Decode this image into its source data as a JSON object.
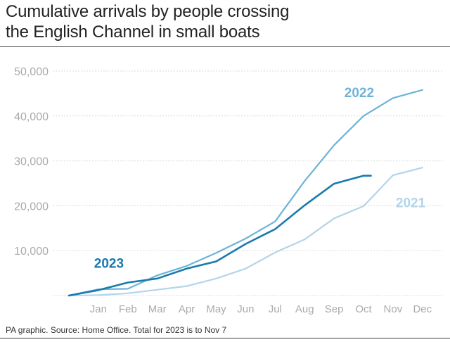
{
  "header": {
    "title_line1": "Cumulative arrivals by people crossing",
    "title_line2": "the English Channel in small boats"
  },
  "footer": {
    "source": "PA graphic. Source: Home Office. Total for 2023 is to Nov 7"
  },
  "colors": {
    "s2021": "#b3d5ea",
    "s2022": "#6db3d9",
    "s2023": "#1a7aad",
    "grid": "#d9d9d9",
    "tick": "#aaaaaa"
  },
  "chart_data": {
    "type": "line",
    "title": "Cumulative arrivals by people crossing the English Channel in small boats",
    "xlabel": "",
    "ylabel": "",
    "categories": [
      "Jan",
      "Feb",
      "Mar",
      "Apr",
      "May",
      "Jun",
      "Jul",
      "Aug",
      "Sep",
      "Oct",
      "Nov",
      "Dec"
    ],
    "y_ticks": [
      10000,
      20000,
      30000,
      40000,
      50000
    ],
    "y_tick_labels": [
      "10,000",
      "20,000",
      "30,000",
      "40,000",
      "50,000"
    ],
    "ylim": [
      0,
      50000
    ],
    "grid": true,
    "series": [
      {
        "name": "2021",
        "x": [
          0,
          1,
          2,
          3,
          4,
          5,
          6,
          7,
          8,
          9,
          10,
          11,
          12
        ],
        "values": [
          0,
          100,
          500,
          1300,
          2100,
          3800,
          6000,
          9600,
          12500,
          17200,
          19900,
          26800,
          28500
        ]
      },
      {
        "name": "2022",
        "x": [
          0,
          1,
          2,
          3,
          4,
          5,
          6,
          7,
          8,
          9,
          10,
          11,
          12
        ],
        "values": [
          0,
          1400,
          1500,
          4500,
          6600,
          9500,
          12700,
          16500,
          25500,
          33500,
          40000,
          44000,
          45800
        ]
      },
      {
        "name": "2023",
        "x": [
          0,
          1,
          2,
          3,
          4,
          5,
          6,
          7,
          8,
          9,
          10,
          10.25
        ],
        "values": [
          0,
          1200,
          2900,
          3800,
          6000,
          7600,
          11500,
          14800,
          20100,
          24900,
          26700,
          26700
        ]
      }
    ],
    "annotations": [
      {
        "text": "2023",
        "series": "2023"
      },
      {
        "text": "2022",
        "series": "2022"
      },
      {
        "text": "2021",
        "series": "2021"
      }
    ]
  }
}
